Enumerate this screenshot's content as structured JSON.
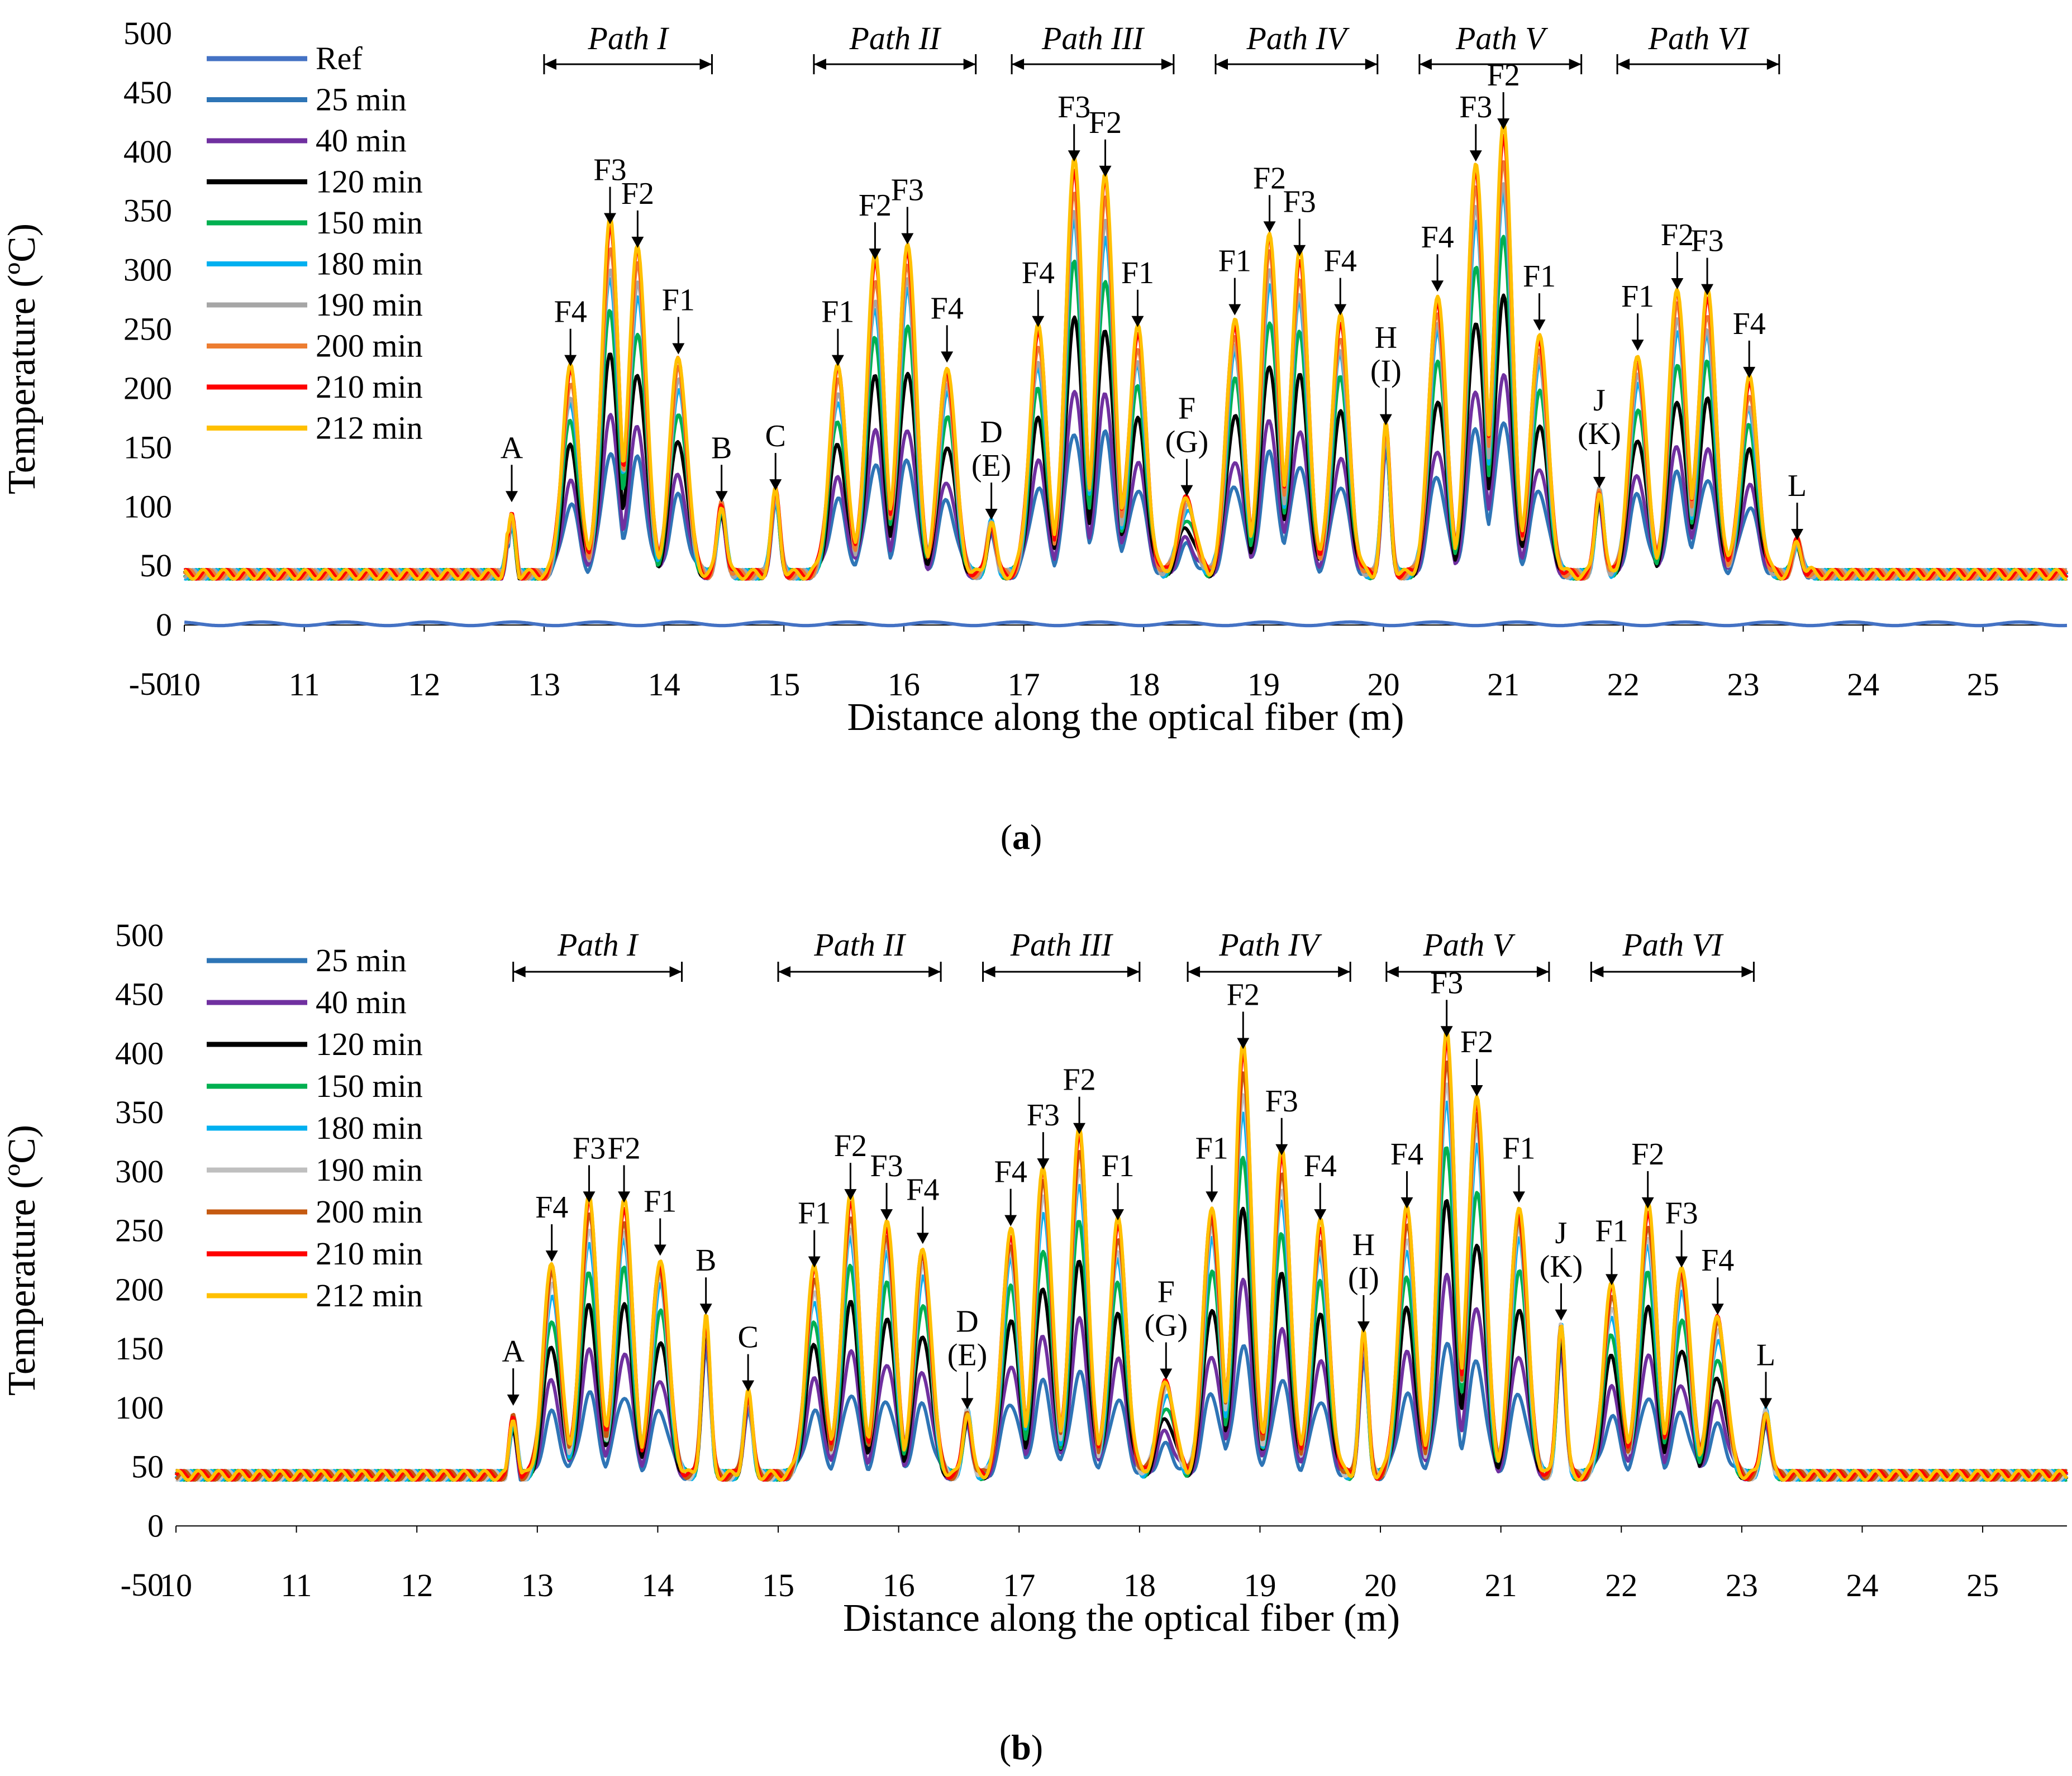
{
  "chart_data": [
    {
      "type": "line",
      "panel": "a",
      "caption": {
        "open": "(",
        "letter": "a",
        "close": ")"
      },
      "xlabel": "Distance along the optical fiber (m)",
      "ylabel": "Temperature (ºC)",
      "xlim": [
        10,
        25.7
      ],
      "ylim": [
        -50,
        500
      ],
      "xticks": [
        10,
        11,
        12,
        13,
        14,
        15,
        16,
        17,
        18,
        19,
        20,
        21,
        22,
        23,
        24,
        25
      ],
      "yticks": [
        -50,
        0,
        50,
        100,
        150,
        200,
        250,
        300,
        350,
        400,
        450,
        500
      ],
      "legend": [
        "Ref",
        "25 min",
        "40 min",
        "120 min",
        "150 min",
        "180 min",
        "190 min",
        "200 min",
        "210 min",
        "212 min"
      ],
      "colors": [
        "#4472c4",
        "#2e75b6",
        "#7030a0",
        "#000000",
        "#00b050",
        "#00b0f0",
        "#a6a6a6",
        "#ed7d31",
        "#ff0000",
        "#ffc000"
      ],
      "paths": [
        {
          "label": "Path I",
          "x0": 13.0,
          "x1": 14.4
        },
        {
          "label": "Path II",
          "x0": 15.25,
          "x1": 16.6
        },
        {
          "label": "Path III",
          "x0": 16.9,
          "x1": 18.25
        },
        {
          "label": "Path IV",
          "x0": 18.6,
          "x1": 19.95
        },
        {
          "label": "Path V",
          "x0": 20.3,
          "x1": 21.65
        },
        {
          "label": "Path VI",
          "x0": 21.95,
          "x1": 23.3
        }
      ],
      "annotations": [
        {
          "label": "A",
          "x": 12.73,
          "y": 100
        },
        {
          "label": "F4",
          "x": 13.22,
          "y": 215
        },
        {
          "label": "F3",
          "x": 13.55,
          "y": 335
        },
        {
          "label": "F2",
          "x": 13.78,
          "y": 315
        },
        {
          "label": "F1",
          "x": 14.12,
          "y": 225
        },
        {
          "label": "B",
          "x": 14.48,
          "y": 100
        },
        {
          "label": "C",
          "x": 14.93,
          "y": 110
        },
        {
          "label": "F1",
          "x": 15.45,
          "y": 215
        },
        {
          "label": "F2",
          "x": 15.76,
          "y": 305
        },
        {
          "label": "F3",
          "x": 16.03,
          "y": 318
        },
        {
          "label": "F4",
          "x": 16.36,
          "y": 218
        },
        {
          "label": "D",
          "sub": "(E)",
          "x": 16.73,
          "y": 85
        },
        {
          "label": "F4",
          "x": 17.12,
          "y": 248
        },
        {
          "label": "F3",
          "x": 17.42,
          "y": 388
        },
        {
          "label": "F2",
          "x": 17.68,
          "y": 375
        },
        {
          "label": "F1",
          "x": 17.95,
          "y": 248
        },
        {
          "label": "F",
          "sub": "(G)",
          "x": 18.36,
          "y": 105
        },
        {
          "label": "F1",
          "x": 18.76,
          "y": 258
        },
        {
          "label": "F2",
          "x": 19.05,
          "y": 328
        },
        {
          "label": "F3",
          "x": 19.3,
          "y": 308
        },
        {
          "label": "F4",
          "x": 19.64,
          "y": 258
        },
        {
          "label": "H",
          "sub": "(I)",
          "x": 20.02,
          "y": 165
        },
        {
          "label": "F4",
          "x": 20.45,
          "y": 278
        },
        {
          "label": "F3",
          "x": 20.77,
          "y": 388
        },
        {
          "label": "F2",
          "x": 21.0,
          "y": 415
        },
        {
          "label": "F1",
          "x": 21.3,
          "y": 245
        },
        {
          "label": "J",
          "sub": "(K)",
          "x": 21.8,
          "y": 112
        },
        {
          "label": "F1",
          "x": 22.12,
          "y": 228
        },
        {
          "label": "F2",
          "x": 22.45,
          "y": 280
        },
        {
          "label": "F3",
          "x": 22.7,
          "y": 275
        },
        {
          "label": "F4",
          "x": 23.05,
          "y": 205
        },
        {
          "label": "L",
          "x": 23.45,
          "y": 68
        }
      ]
    },
    {
      "type": "line",
      "panel": "b",
      "caption": {
        "open": "(",
        "letter": "b",
        "close": ")"
      },
      "xlabel": "Distance along the optical fiber (m)",
      "ylabel": "Temperature (ºC)",
      "xlim": [
        10,
        25.7
      ],
      "ylim": [
        -50,
        500
      ],
      "xticks": [
        10,
        11,
        12,
        13,
        14,
        15,
        16,
        17,
        18,
        19,
        20,
        21,
        22,
        23,
        24,
        25
      ],
      "yticks": [
        -50,
        0,
        50,
        100,
        150,
        200,
        250,
        300,
        350,
        400,
        450,
        500
      ],
      "legend": [
        "25 min",
        "40 min",
        "120 min",
        "150 min",
        "180 min",
        "190 min",
        "200 min",
        "210 min",
        "212 min"
      ],
      "colors": [
        "#2e75b6",
        "#7030a0",
        "#000000",
        "#00b050",
        "#00b0f0",
        "#bfbfbf",
        "#c55a11",
        "#ff0000",
        "#ffc000"
      ],
      "paths": [
        {
          "label": "Path I",
          "x0": 12.8,
          "x1": 14.2
        },
        {
          "label": "Path II",
          "x0": 15.0,
          "x1": 16.35
        },
        {
          "label": "Path III",
          "x0": 16.7,
          "x1": 18.0
        },
        {
          "label": "Path IV",
          "x0": 18.4,
          "x1": 19.75
        },
        {
          "label": "Path V",
          "x0": 20.05,
          "x1": 21.4
        },
        {
          "label": "Path VI",
          "x0": 21.75,
          "x1": 23.1
        }
      ],
      "annotations": [
        {
          "label": "A",
          "x": 12.8,
          "y": 98
        },
        {
          "label": "F4",
          "x": 13.12,
          "y": 220
        },
        {
          "label": "F3",
          "x": 13.43,
          "y": 270
        },
        {
          "label": "F2",
          "x": 13.72,
          "y": 270
        },
        {
          "label": "F1",
          "x": 14.02,
          "y": 225
        },
        {
          "label": "B",
          "x": 14.4,
          "y": 175
        },
        {
          "label": "C",
          "x": 14.75,
          "y": 110
        },
        {
          "label": "F1",
          "x": 15.3,
          "y": 215
        },
        {
          "label": "F2",
          "x": 15.6,
          "y": 272
        },
        {
          "label": "F3",
          "x": 15.9,
          "y": 255
        },
        {
          "label": "F4",
          "x": 16.2,
          "y": 235
        },
        {
          "label": "D",
          "sub": "(E)",
          "x": 16.57,
          "y": 95
        },
        {
          "label": "F4",
          "x": 16.93,
          "y": 250
        },
        {
          "label": "F3",
          "x": 17.2,
          "y": 298
        },
        {
          "label": "F2",
          "x": 17.5,
          "y": 328
        },
        {
          "label": "F1",
          "x": 17.82,
          "y": 255
        },
        {
          "label": "F",
          "sub": "(G)",
          "x": 18.22,
          "y": 120
        },
        {
          "label": "F1",
          "x": 18.6,
          "y": 270
        },
        {
          "label": "F2",
          "x": 18.86,
          "y": 400
        },
        {
          "label": "F3",
          "x": 19.18,
          "y": 310
        },
        {
          "label": "F4",
          "x": 19.5,
          "y": 255
        },
        {
          "label": "H",
          "sub": "(I)",
          "x": 19.86,
          "y": 160
        },
        {
          "label": "F4",
          "x": 20.22,
          "y": 265
        },
        {
          "label": "F3",
          "x": 20.55,
          "y": 410
        },
        {
          "label": "F2",
          "x": 20.8,
          "y": 360
        },
        {
          "label": "F1",
          "x": 21.15,
          "y": 270
        },
        {
          "label": "J",
          "sub": "(K)",
          "x": 21.5,
          "y": 170
        },
        {
          "label": "F1",
          "x": 21.92,
          "y": 200
        },
        {
          "label": "F2",
          "x": 22.22,
          "y": 265
        },
        {
          "label": "F3",
          "x": 22.5,
          "y": 215
        },
        {
          "label": "F4",
          "x": 22.8,
          "y": 175
        },
        {
          "label": "L",
          "x": 23.2,
          "y": 95
        }
      ]
    }
  ]
}
